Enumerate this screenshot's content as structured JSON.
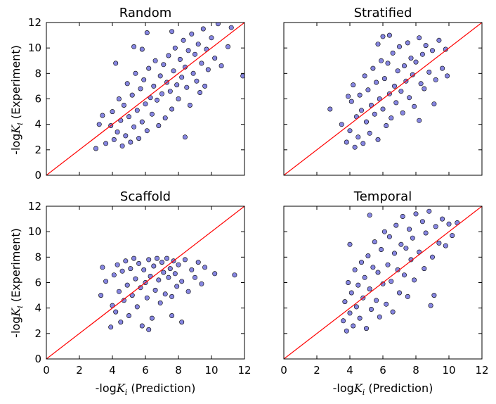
{
  "figure": {
    "ylabel_prefix": "-log",
    "ylabel_var": "K",
    "ylabel_sub": "i",
    "ylabel_suffix": " (Experiment)",
    "xlabel_prefix": "-log",
    "xlabel_var": "K",
    "xlabel_sub": "i",
    "xlabel_suffix": " (Prediction)"
  },
  "chart_data": [
    {
      "type": "scatter",
      "title": "Random",
      "xlabel": "",
      "ylabel": "-logKi (Experiment)",
      "xlim": [
        0,
        12
      ],
      "ylim": [
        0,
        12
      ],
      "xticks": [
        0,
        2,
        4,
        6,
        8,
        10,
        12
      ],
      "yticks": [
        0,
        2,
        4,
        6,
        8,
        10,
        12
      ],
      "show_xtick_labels": false,
      "show_ytick_labels": true,
      "reference_line": {
        "x": [
          0,
          12
        ],
        "y": [
          0,
          12
        ],
        "color": "#ff0000"
      },
      "marker_color": "#3333cc",
      "points": [
        [
          3.0,
          2.1
        ],
        [
          3.2,
          4.0
        ],
        [
          3.6,
          2.5
        ],
        [
          3.9,
          3.9
        ],
        [
          4.0,
          5.0
        ],
        [
          4.1,
          2.8
        ],
        [
          4.3,
          3.4
        ],
        [
          4.4,
          6.0
        ],
        [
          4.5,
          4.3
        ],
        [
          4.6,
          2.3
        ],
        [
          4.7,
          5.5
        ],
        [
          4.8,
          3.1
        ],
        [
          4.9,
          7.2
        ],
        [
          5.0,
          4.6
        ],
        [
          5.1,
          2.6
        ],
        [
          5.2,
          6.3
        ],
        [
          5.3,
          3.8
        ],
        [
          5.4,
          8.0
        ],
        [
          5.5,
          5.1
        ],
        [
          5.6,
          2.9
        ],
        [
          5.7,
          6.8
        ],
        [
          5.8,
          4.2
        ],
        [
          5.9,
          7.5
        ],
        [
          6.0,
          5.6
        ],
        [
          6.1,
          3.5
        ],
        [
          6.2,
          8.4
        ],
        [
          6.3,
          6.1
        ],
        [
          6.4,
          4.8
        ],
        [
          6.5,
          7.0
        ],
        [
          6.6,
          9.0
        ],
        [
          6.7,
          5.9
        ],
        [
          6.8,
          3.9
        ],
        [
          6.9,
          7.8
        ],
        [
          7.0,
          6.4
        ],
        [
          7.1,
          8.7
        ],
        [
          7.2,
          4.5
        ],
        [
          7.3,
          7.3
        ],
        [
          7.4,
          9.4
        ],
        [
          7.5,
          6.6
        ],
        [
          7.6,
          5.2
        ],
        [
          7.7,
          8.2
        ],
        [
          7.8,
          10.0
        ],
        [
          7.9,
          7.1
        ],
        [
          8.0,
          6.0
        ],
        [
          8.1,
          9.1
        ],
        [
          8.2,
          7.7
        ],
        [
          8.3,
          10.6
        ],
        [
          8.4,
          8.5
        ],
        [
          8.5,
          6.9
        ],
        [
          8.6,
          9.8
        ],
        [
          8.7,
          5.5
        ],
        [
          8.8,
          11.1
        ],
        [
          8.9,
          8.0
        ],
        [
          9.0,
          9.5
        ],
        [
          9.1,
          7.4
        ],
        [
          9.2,
          10.3
        ],
        [
          9.4,
          8.8
        ],
        [
          9.5,
          11.5
        ],
        [
          9.6,
          7.0
        ],
        [
          9.7,
          9.9
        ],
        [
          9.8,
          8.3
        ],
        [
          10.0,
          10.8
        ],
        [
          10.2,
          9.2
        ],
        [
          10.4,
          11.9
        ],
        [
          10.6,
          8.6
        ],
        [
          11.0,
          10.1
        ],
        [
          11.2,
          11.6
        ],
        [
          11.9,
          7.8
        ],
        [
          5.3,
          10.1
        ],
        [
          6.1,
          11.2
        ],
        [
          8.4,
          3.0
        ],
        [
          4.2,
          8.8
        ],
        [
          3.4,
          4.7
        ],
        [
          5.8,
          9.9
        ],
        [
          7.6,
          11.3
        ],
        [
          9.3,
          6.5
        ]
      ]
    },
    {
      "type": "scatter",
      "title": "Stratified",
      "xlabel": "",
      "ylabel": "",
      "xlim": [
        0,
        12
      ],
      "ylim": [
        0,
        12
      ],
      "xticks": [
        0,
        2,
        4,
        6,
        8,
        10,
        12
      ],
      "yticks": [
        0,
        2,
        4,
        6,
        8,
        10,
        12
      ],
      "show_xtick_labels": false,
      "show_ytick_labels": false,
      "reference_line": {
        "x": [
          0,
          12
        ],
        "y": [
          0,
          12
        ],
        "color": "#ff0000"
      },
      "marker_color": "#3333cc",
      "points": [
        [
          2.8,
          5.2
        ],
        [
          3.5,
          4.0
        ],
        [
          3.8,
          2.6
        ],
        [
          4.0,
          3.5
        ],
        [
          4.1,
          5.8
        ],
        [
          4.2,
          7.1
        ],
        [
          4.3,
          2.2
        ],
        [
          4.4,
          4.6
        ],
        [
          4.5,
          3.0
        ],
        [
          4.6,
          6.3
        ],
        [
          4.7,
          5.1
        ],
        [
          4.8,
          2.5
        ],
        [
          4.9,
          7.8
        ],
        [
          5.0,
          4.2
        ],
        [
          5.1,
          6.7
        ],
        [
          5.2,
          3.3
        ],
        [
          5.3,
          5.5
        ],
        [
          5.4,
          8.4
        ],
        [
          5.5,
          4.8
        ],
        [
          5.6,
          7.3
        ],
        [
          5.7,
          2.8
        ],
        [
          5.8,
          6.0
        ],
        [
          5.9,
          9.0
        ],
        [
          6.0,
          5.2
        ],
        [
          6.1,
          7.6
        ],
        [
          6.2,
          3.9
        ],
        [
          6.3,
          8.8
        ],
        [
          6.4,
          6.4
        ],
        [
          6.5,
          4.5
        ],
        [
          6.6,
          9.6
        ],
        [
          6.7,
          7.0
        ],
        [
          6.8,
          5.7
        ],
        [
          6.9,
          8.2
        ],
        [
          7.0,
          10.1
        ],
        [
          7.1,
          6.6
        ],
        [
          7.2,
          4.9
        ],
        [
          7.3,
          8.6
        ],
        [
          7.4,
          7.4
        ],
        [
          7.5,
          10.4
        ],
        [
          7.6,
          6.1
        ],
        [
          7.7,
          9.2
        ],
        [
          7.8,
          7.9
        ],
        [
          7.9,
          5.4
        ],
        [
          8.0,
          8.9
        ],
        [
          8.2,
          10.8
        ],
        [
          8.3,
          7.2
        ],
        [
          8.4,
          9.5
        ],
        [
          8.5,
          6.8
        ],
        [
          8.6,
          10.2
        ],
        [
          8.8,
          8.1
        ],
        [
          9.0,
          9.8
        ],
        [
          9.2,
          7.5
        ],
        [
          9.4,
          10.6
        ],
        [
          9.6,
          8.4
        ],
        [
          9.8,
          9.9
        ],
        [
          9.9,
          7.8
        ],
        [
          6.0,
          10.9
        ],
        [
          6.4,
          11.0
        ],
        [
          5.7,
          10.3
        ],
        [
          8.2,
          4.3
        ],
        [
          9.1,
          5.6
        ],
        [
          3.9,
          6.2
        ]
      ]
    },
    {
      "type": "scatter",
      "title": "Scaffold",
      "xlabel": "-logKi (Prediction)",
      "ylabel": "-logKi (Experiment)",
      "xlim": [
        0,
        12
      ],
      "ylim": [
        0,
        12
      ],
      "xticks": [
        0,
        2,
        4,
        6,
        8,
        10,
        12
      ],
      "yticks": [
        0,
        2,
        4,
        6,
        8,
        10,
        12
      ],
      "show_xtick_labels": true,
      "show_ytick_labels": true,
      "reference_line": {
        "x": [
          0,
          12
        ],
        "y": [
          0,
          12
        ],
        "color": "#ff0000"
      },
      "marker_color": "#3333cc",
      "points": [
        [
          3.3,
          5.0
        ],
        [
          3.4,
          7.2
        ],
        [
          3.6,
          6.1
        ],
        [
          3.9,
          2.5
        ],
        [
          4.0,
          4.2
        ],
        [
          4.1,
          6.6
        ],
        [
          4.2,
          3.7
        ],
        [
          4.3,
          7.4
        ],
        [
          4.4,
          5.3
        ],
        [
          4.5,
          2.9
        ],
        [
          4.6,
          6.9
        ],
        [
          4.7,
          4.6
        ],
        [
          4.8,
          7.7
        ],
        [
          4.9,
          5.8
        ],
        [
          5.0,
          3.4
        ],
        [
          5.1,
          7.1
        ],
        [
          5.2,
          5.0
        ],
        [
          5.3,
          7.9
        ],
        [
          5.4,
          6.3
        ],
        [
          5.5,
          4.1
        ],
        [
          5.6,
          7.5
        ],
        [
          5.7,
          5.6
        ],
        [
          5.8,
          2.6
        ],
        [
          5.9,
          7.0
        ],
        [
          6.0,
          6.0
        ],
        [
          6.1,
          4.8
        ],
        [
          6.2,
          7.8
        ],
        [
          6.3,
          6.5
        ],
        [
          6.4,
          3.2
        ],
        [
          6.5,
          7.3
        ],
        [
          6.6,
          5.4
        ],
        [
          6.7,
          7.9
        ],
        [
          6.8,
          6.2
        ],
        [
          6.9,
          4.4
        ],
        [
          7.0,
          7.6
        ],
        [
          7.1,
          6.8
        ],
        [
          7.2,
          5.1
        ],
        [
          7.3,
          7.9
        ],
        [
          7.4,
          6.4
        ],
        [
          7.5,
          7.1
        ],
        [
          7.6,
          4.9
        ],
        [
          7.7,
          7.7
        ],
        [
          7.8,
          6.7
        ],
        [
          7.9,
          5.7
        ],
        [
          8.0,
          7.4
        ],
        [
          8.2,
          6.1
        ],
        [
          8.4,
          7.8
        ],
        [
          8.6,
          5.3
        ],
        [
          8.8,
          7.0
        ],
        [
          9.0,
          6.4
        ],
        [
          9.2,
          7.6
        ],
        [
          9.4,
          5.9
        ],
        [
          9.6,
          7.2
        ],
        [
          8.2,
          2.9
        ],
        [
          7.6,
          3.4
        ],
        [
          11.4,
          6.6
        ],
        [
          10.2,
          6.7
        ],
        [
          6.2,
          2.3
        ]
      ]
    },
    {
      "type": "scatter",
      "title": "Temporal",
      "xlabel": "-logKi (Prediction)",
      "ylabel": "",
      "xlim": [
        0,
        12
      ],
      "ylim": [
        0,
        12
      ],
      "xticks": [
        0,
        2,
        4,
        6,
        8,
        10,
        12
      ],
      "yticks": [
        0,
        2,
        4,
        6,
        8,
        10,
        12
      ],
      "show_xtick_labels": true,
      "show_ytick_labels": false,
      "reference_line": {
        "x": [
          0,
          12
        ],
        "y": [
          0,
          12
        ],
        "color": "#ff0000"
      },
      "marker_color": "#3333cc",
      "points": [
        [
          3.6,
          3.0
        ],
        [
          3.7,
          4.5
        ],
        [
          3.8,
          2.2
        ],
        [
          3.9,
          6.0
        ],
        [
          4.0,
          3.6
        ],
        [
          4.1,
          5.2
        ],
        [
          4.2,
          2.6
        ],
        [
          4.3,
          7.0
        ],
        [
          4.4,
          4.1
        ],
        [
          4.5,
          5.8
        ],
        [
          4.6,
          3.2
        ],
        [
          4.7,
          7.6
        ],
        [
          4.8,
          4.8
        ],
        [
          4.9,
          6.4
        ],
        [
          5.0,
          2.4
        ],
        [
          5.1,
          8.1
        ],
        [
          5.2,
          5.5
        ],
        [
          5.3,
          3.9
        ],
        [
          5.4,
          7.2
        ],
        [
          5.5,
          9.2
        ],
        [
          5.6,
          4.6
        ],
        [
          5.7,
          6.8
        ],
        [
          5.8,
          3.3
        ],
        [
          5.9,
          8.6
        ],
        [
          6.0,
          5.9
        ],
        [
          6.1,
          10.0
        ],
        [
          6.2,
          4.3
        ],
        [
          6.3,
          7.4
        ],
        [
          6.4,
          9.6
        ],
        [
          6.5,
          6.1
        ],
        [
          6.6,
          3.7
        ],
        [
          6.7,
          8.3
        ],
        [
          6.8,
          10.5
        ],
        [
          6.9,
          7.0
        ],
        [
          7.0,
          5.2
        ],
        [
          7.1,
          9.0
        ],
        [
          7.2,
          11.2
        ],
        [
          7.3,
          6.6
        ],
        [
          7.4,
          8.7
        ],
        [
          7.5,
          4.9
        ],
        [
          7.6,
          10.2
        ],
        [
          7.7,
          7.8
        ],
        [
          7.8,
          9.5
        ],
        [
          7.9,
          6.2
        ],
        [
          8.0,
          11.4
        ],
        [
          8.2,
          8.4
        ],
        [
          8.4,
          10.8
        ],
        [
          8.5,
          7.1
        ],
        [
          8.6,
          9.9
        ],
        [
          8.8,
          11.6
        ],
        [
          9.0,
          8.0
        ],
        [
          9.2,
          10.4
        ],
        [
          9.4,
          9.1
        ],
        [
          9.6,
          11.0
        ],
        [
          9.8,
          8.9
        ],
        [
          10.0,
          10.6
        ],
        [
          10.2,
          9.7
        ],
        [
          10.5,
          10.7
        ],
        [
          9.1,
          5.0
        ],
        [
          5.2,
          11.3
        ],
        [
          4.0,
          9.0
        ],
        [
          8.9,
          4.2
        ]
      ]
    }
  ]
}
